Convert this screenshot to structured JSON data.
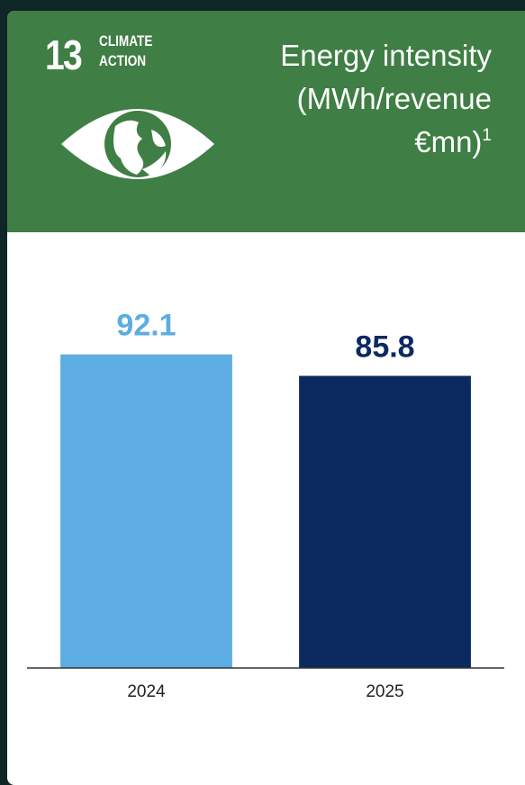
{
  "logo": {
    "number": "13",
    "lines": [
      "CLIMATE",
      "ACTION"
    ]
  },
  "chart_data": {
    "type": "bar",
    "title": "Energy intensity (MWh/revenue €mn)",
    "title_note": "1",
    "categories": [
      "2024",
      "2025"
    ],
    "values": [
      92.1,
      85.8
    ],
    "colors": [
      "#5dade2",
      "#0b2a5f"
    ],
    "ylim": [
      0,
      110
    ]
  }
}
